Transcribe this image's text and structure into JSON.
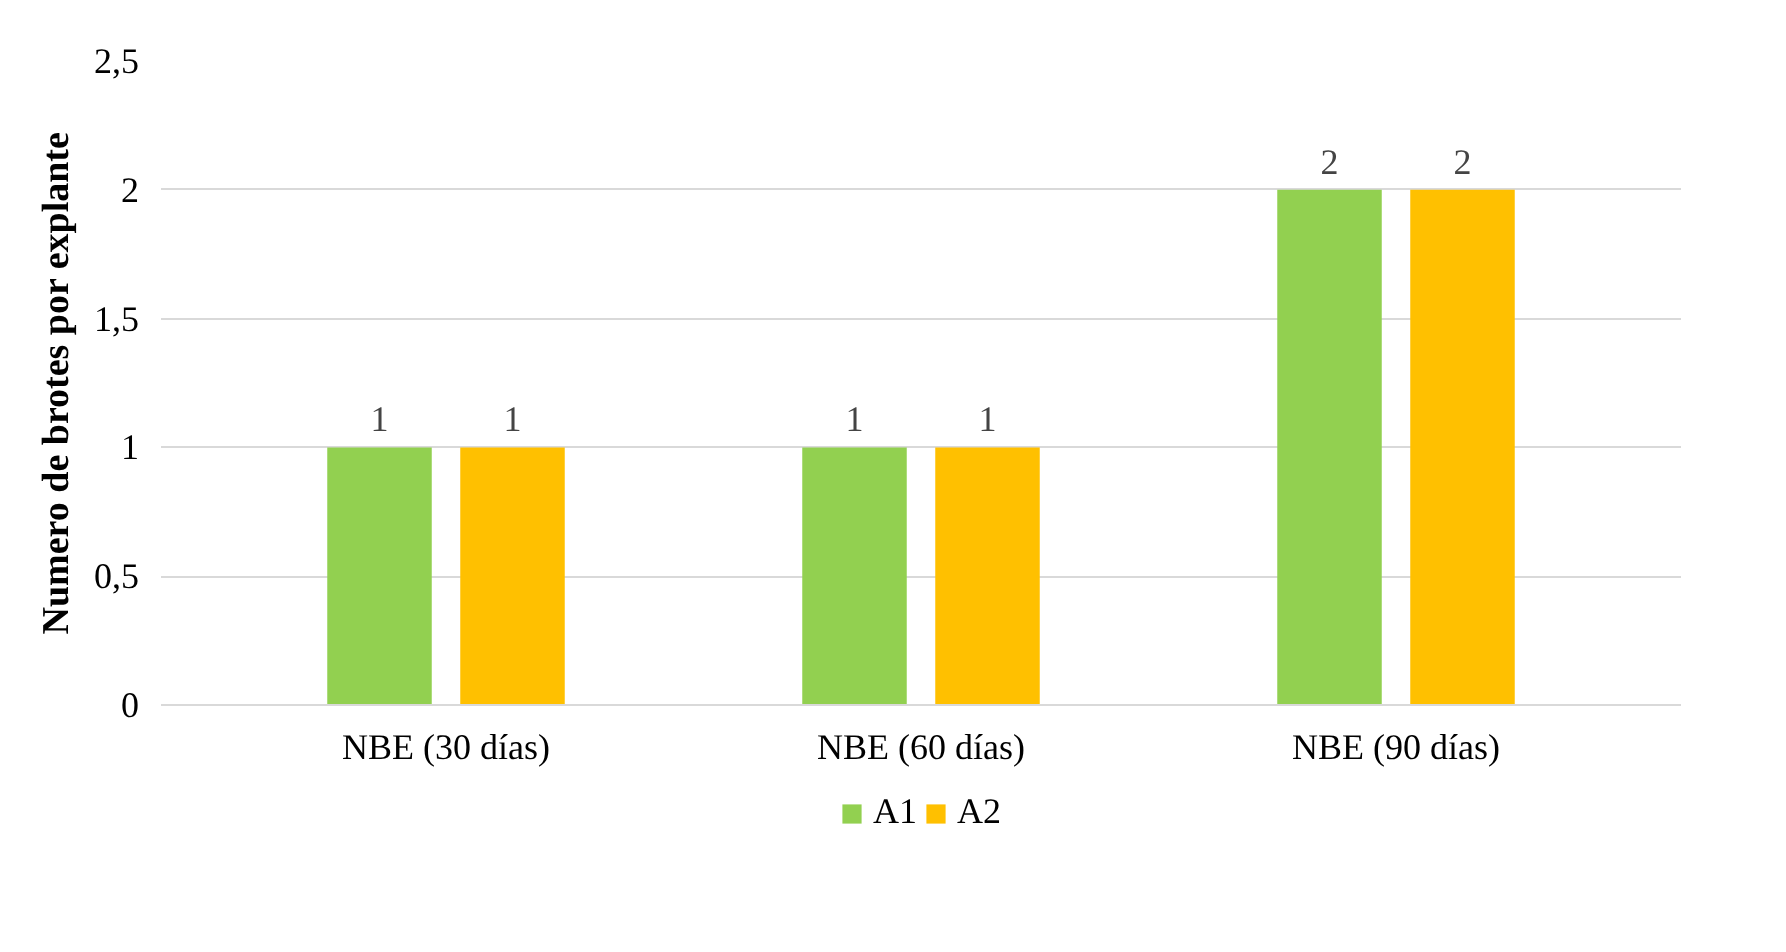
{
  "chart_data": {
    "type": "bar",
    "ylabel": "Numero de brotes por explante",
    "categories": [
      "NBE (30 días)",
      "NBE (60 días)",
      "NBE (90 días)"
    ],
    "series": [
      {
        "name": "A1",
        "color": "#92d050",
        "values": [
          1,
          1,
          2
        ]
      },
      {
        "name": "A2",
        "color": "#ffc000",
        "values": [
          1,
          1,
          2
        ]
      }
    ],
    "ylim": [
      0,
      2.5
    ],
    "yticks": [
      0,
      {
        "value": 0.5,
        "label": "0,5"
      },
      1,
      {
        "value": 1.5,
        "label": "1,5"
      },
      2,
      {
        "value": 2.5,
        "label": "2,5"
      }
    ],
    "grid": "y",
    "legend": "bottom",
    "data_labels": true
  }
}
